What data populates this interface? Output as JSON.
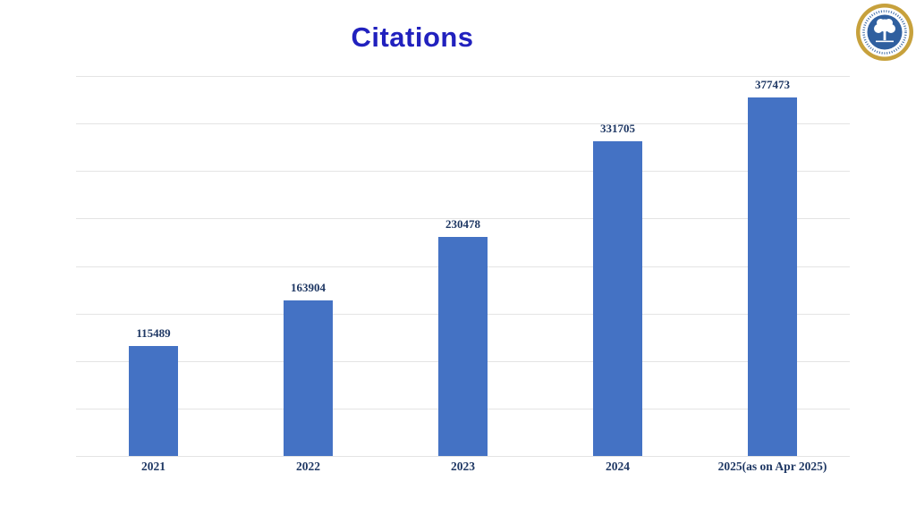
{
  "page": {
    "title": "Citations"
  },
  "logo": {
    "name": "institution-circular-seal",
    "ring_color": "#C7A13C",
    "band_color": "#FFFFFF",
    "center_color": "#2F5F9F",
    "emblem": "tree"
  },
  "chart_data": {
    "type": "bar",
    "title": "Citations",
    "categories": [
      "2021",
      "2022",
      "2023",
      "2024",
      "2025(as on Apr 2025)"
    ],
    "values": [
      115489,
      163904,
      230478,
      331705,
      377473
    ],
    "data_labels": [
      "115489",
      "163904",
      "230478",
      "331705",
      "377473"
    ],
    "xlabel": "",
    "ylabel": "",
    "ylim": [
      0,
      400000
    ],
    "grid_step": 50000,
    "grid": true,
    "legend": false,
    "y_tick_labels_shown": false,
    "colors": {
      "bar": "#4472C4",
      "title": "#2121BE",
      "data_label": "#1F3864",
      "axis_label": "#1F3864",
      "gridline": "#E4E4E4",
      "background": "#FFFFFF"
    }
  }
}
